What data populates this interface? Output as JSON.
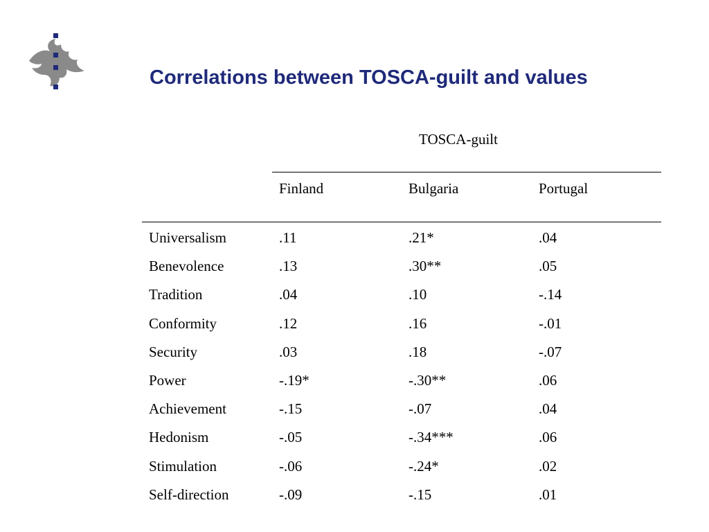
{
  "slide": {
    "title": "Correlations between TOSCA-guilt and values",
    "logo_icon": "flame-logo-icon",
    "accent_color": "#1f2a7a"
  },
  "table": {
    "group_header": "TOSCA-guilt",
    "columns": [
      "Finland",
      "Bulgaria",
      "Portugal"
    ],
    "rows": [
      {
        "label": "Universalism",
        "values": [
          ".11",
          ".21*",
          ".04"
        ]
      },
      {
        "label": "Benevolence",
        "values": [
          ".13",
          ".30**",
          ".05"
        ]
      },
      {
        "label": "Tradition",
        "values": [
          ".04",
          ".10",
          "-.14"
        ]
      },
      {
        "label": "Conformity",
        "values": [
          ".12",
          ".16",
          "-.01"
        ]
      },
      {
        "label": "Security",
        "values": [
          ".03",
          ".18",
          "-.07"
        ]
      },
      {
        "label": "Power",
        "values": [
          "-.19*",
          "-.30**",
          ".06"
        ]
      },
      {
        "label": "Achievement",
        "values": [
          "-.15",
          "-.07",
          ".04"
        ]
      },
      {
        "label": "Hedonism",
        "values": [
          "-.05",
          "-.34***",
          ".06"
        ]
      },
      {
        "label": "Stimulation",
        "values": [
          "-.06",
          "-.24*",
          ".02"
        ]
      },
      {
        "label": "Self-direction",
        "values": [
          "-.09",
          "-.15",
          ".01"
        ]
      }
    ]
  }
}
